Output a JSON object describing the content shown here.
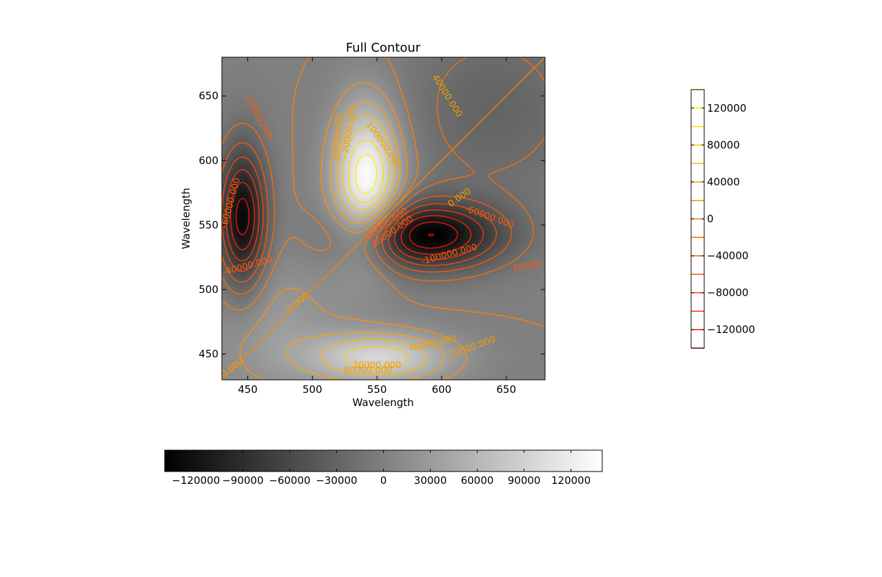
{
  "chart_data": {
    "type": "heatmap",
    "title": "Full Contour",
    "xlabel": "Wavelength",
    "ylabel": "Wavelength",
    "xlim": [
      430,
      680
    ],
    "ylim": [
      430,
      680
    ],
    "grid": false,
    "x_ticks": [
      "450",
      "500",
      "550",
      "600",
      "650"
    ],
    "y_ticks": [
      "450",
      "500",
      "550",
      "600",
      "650"
    ],
    "colormap": "gray",
    "value_range": [
      -140000,
      140000
    ],
    "peaks": [
      {
        "x": 542,
        "y": 585,
        "value": 140000
      },
      {
        "x": 553,
        "y": 447,
        "value": 90000
      },
      {
        "x": 587,
        "y": 542,
        "value": -140000
      },
      {
        "x": 446,
        "y": 555,
        "value": -130000
      }
    ],
    "contour_levels": [
      -140000,
      -120000,
      -100000,
      -80000,
      -60000,
      -40000,
      -20000,
      0,
      20000,
      40000,
      60000,
      80000,
      100000,
      120000,
      140000
    ],
    "contour_labels": [
      {
        "text": "-20000.000",
        "x": 458,
        "y": 634,
        "angle": 62
      },
      {
        "text": "-60000.000",
        "x": 437,
        "y": 567,
        "angle": -75
      },
      {
        "text": "-40000.000",
        "x": 450,
        "y": 518,
        "angle": -15
      },
      {
        "text": "20000.000",
        "x": 520,
        "y": 618,
        "angle": -88
      },
      {
        "text": "20000.000",
        "x": 529,
        "y": 624,
        "angle": -80
      },
      {
        "text": "40000.000",
        "x": 604,
        "y": 650,
        "angle": 58
      },
      {
        "text": "100000.000",
        "x": 555,
        "y": 612,
        "angle": 55
      },
      {
        "text": "0.000",
        "x": 614,
        "y": 571,
        "angle": -35
      },
      {
        "text": "-60000.000",
        "x": 637,
        "y": 556,
        "angle": 20
      },
      {
        "text": "-20000.000",
        "x": 557,
        "y": 550,
        "angle": -35
      },
      {
        "text": "-40000.000",
        "x": 561,
        "y": 544,
        "angle": -35
      },
      {
        "text": "-100000.000",
        "x": 606,
        "y": 527,
        "angle": -15
      },
      {
        "text": "-20000.0",
        "x": 668,
        "y": 518,
        "angle": -10
      },
      {
        "text": "0.000",
        "x": 489,
        "y": 490,
        "angle": -38
      },
      {
        "text": "0.000",
        "x": 438,
        "y": 439,
        "angle": -35
      },
      {
        "text": "40000.000",
        "x": 593,
        "y": 458,
        "angle": -12
      },
      {
        "text": "20000.000",
        "x": 624,
        "y": 455,
        "angle": -20
      },
      {
        "text": "20000.000",
        "x": 550,
        "y": 441,
        "angle": 0
      },
      {
        "text": "80000.000",
        "x": 543,
        "y": 437,
        "angle": 0
      }
    ],
    "bottom_colorbar": {
      "range": [
        -140000,
        140000
      ],
      "ticks": [
        "−120000",
        "−90000",
        "−60000",
        "−30000",
        "0",
        "30000",
        "60000",
        "90000",
        "120000"
      ],
      "tick_values": [
        -120000,
        -90000,
        -60000,
        -30000,
        0,
        30000,
        60000,
        90000,
        120000
      ]
    },
    "right_colorbar": {
      "range": [
        -140000,
        140000
      ],
      "ticks": [
        "120000",
        "80000",
        "40000",
        "0",
        "−40000",
        "−80000",
        "−120000"
      ],
      "tick_values": [
        120000,
        80000,
        40000,
        0,
        -40000,
        -80000,
        -120000
      ],
      "level_lines": [
        -140000,
        -120000,
        -100000,
        -80000,
        -60000,
        -40000,
        -20000,
        0,
        20000,
        40000,
        60000,
        80000,
        100000,
        120000,
        140000
      ]
    },
    "colors": {
      "line_high": "#ffff00",
      "line_mid": "#ff8000",
      "line_low": "#ff0000",
      "label_positive": "#f0a000",
      "label_negative": "#ff5a10"
    }
  }
}
